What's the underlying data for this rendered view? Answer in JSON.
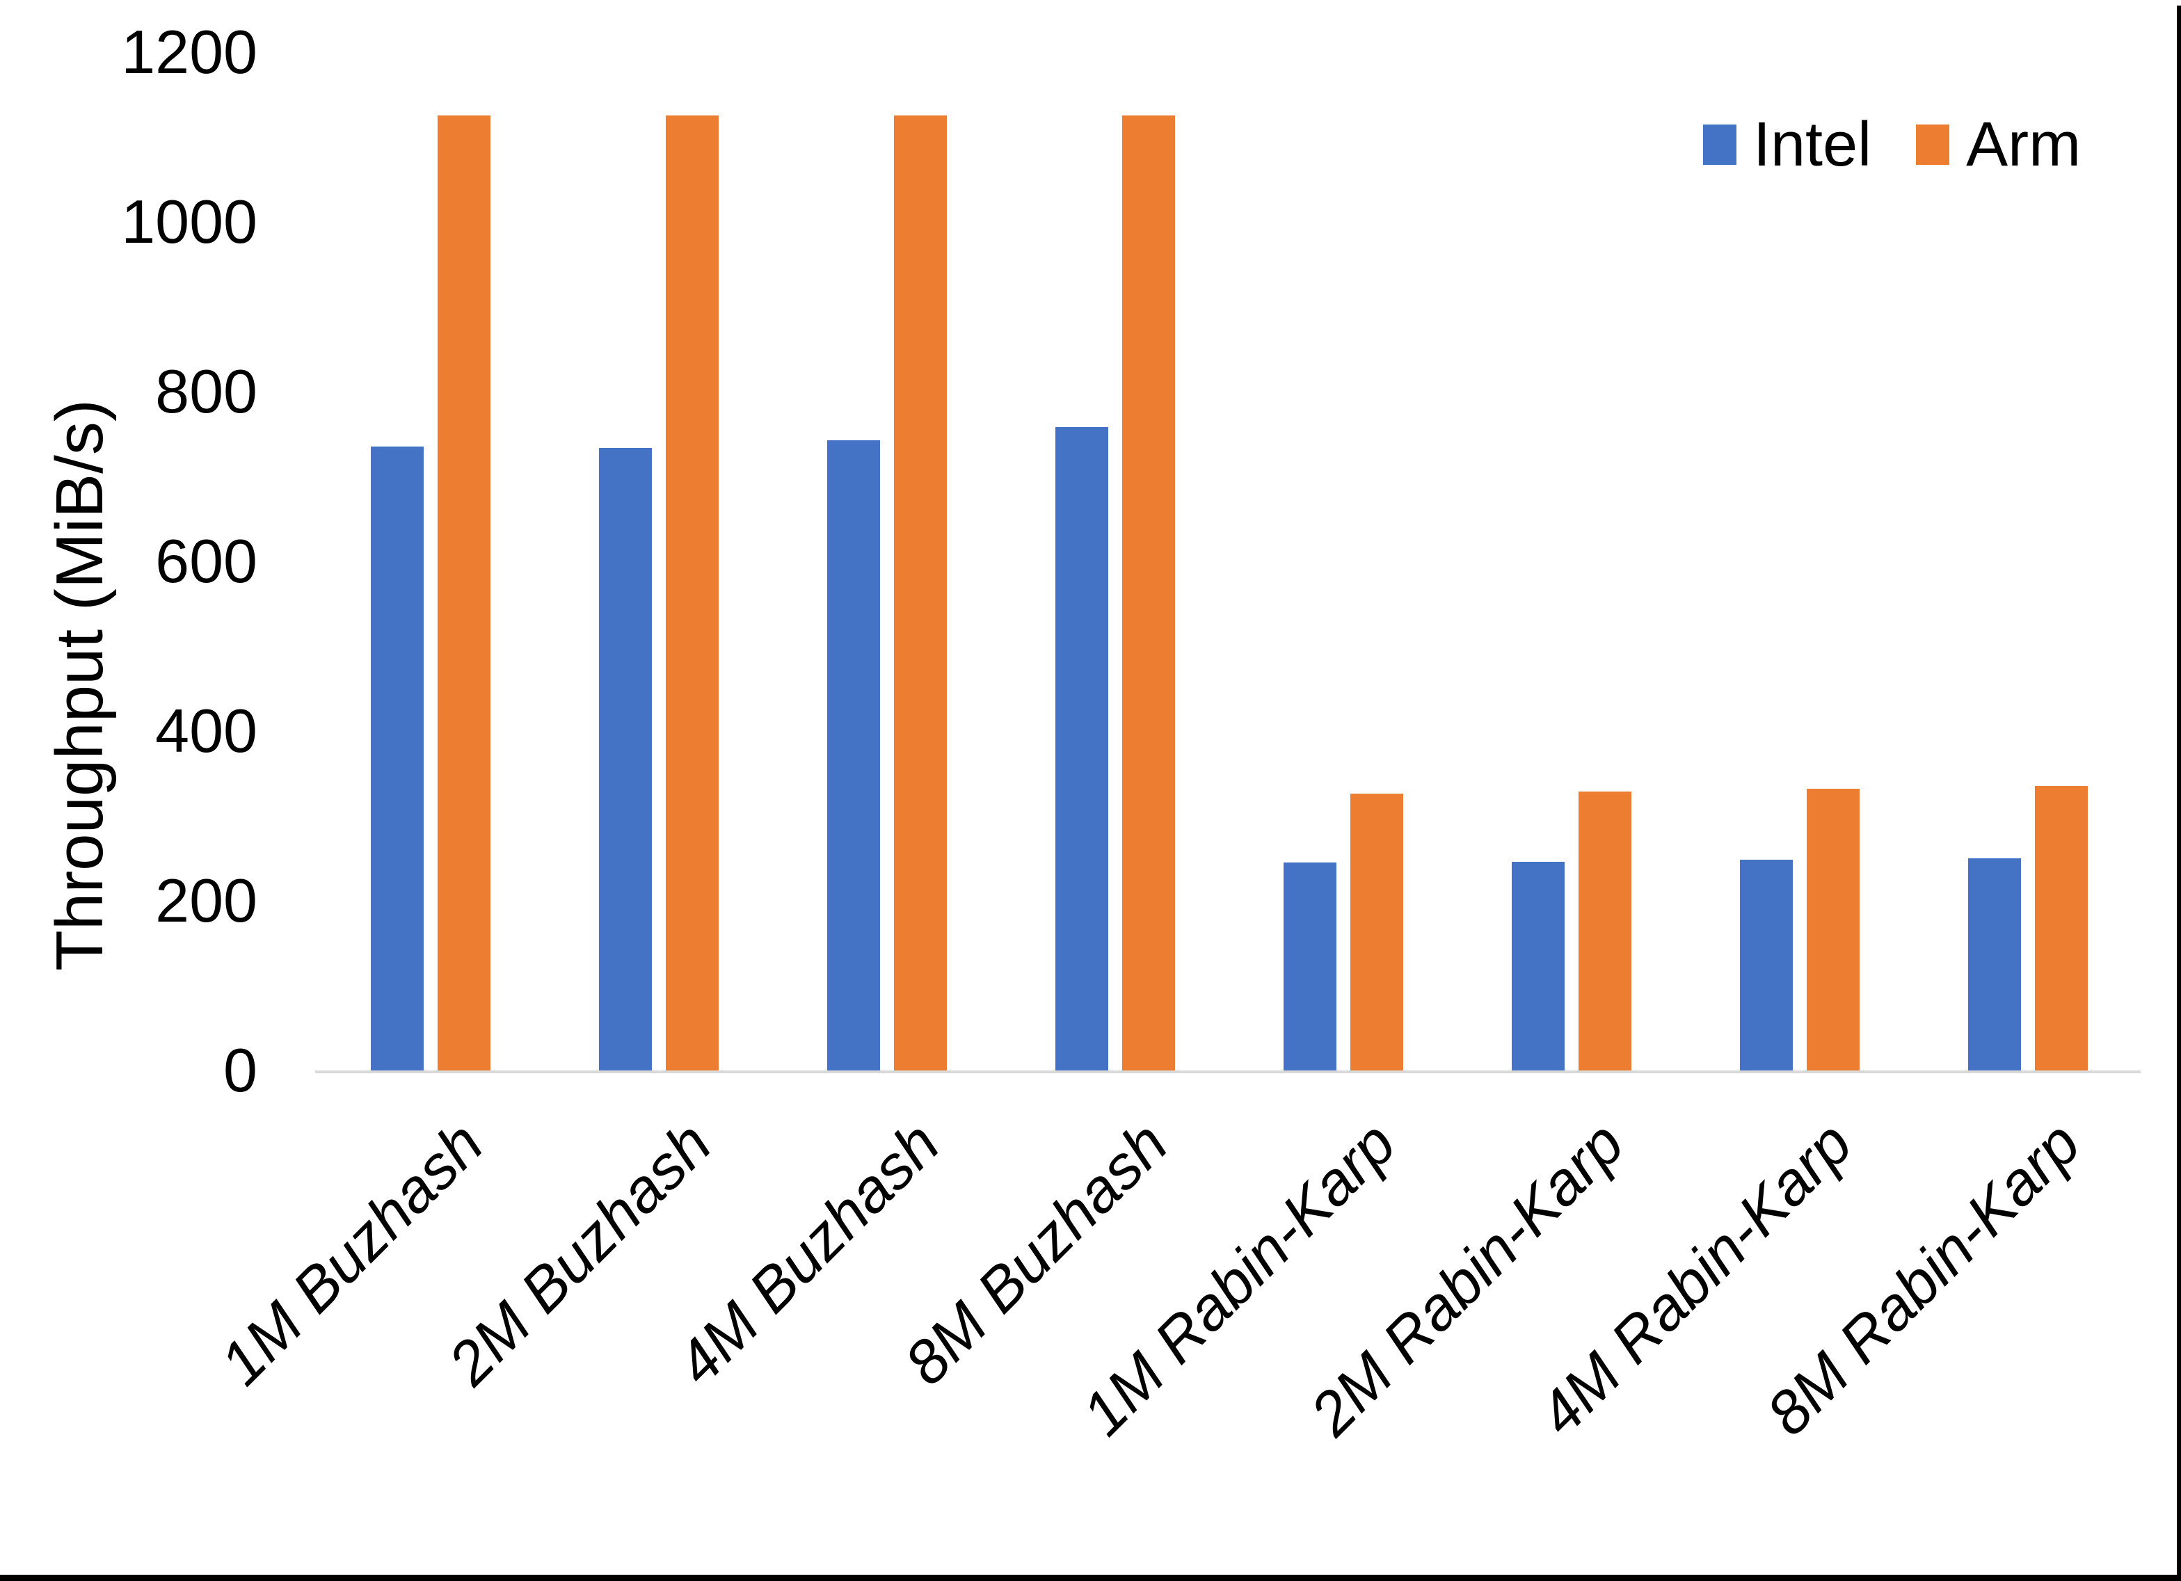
{
  "chart_data": {
    "type": "bar",
    "title": "",
    "xlabel": "",
    "ylabel": "Throughput (MiB/s)",
    "ylim": [
      0,
      1200
    ],
    "yticks": [
      0,
      200,
      400,
      600,
      800,
      1000,
      1200
    ],
    "grid": false,
    "legend_position": "top-right",
    "categories": [
      "1M Buzhash",
      "2M Buzhash",
      "4M Buzhash",
      "8M Buzhash",
      "1M Rabin-Karp",
      "2M Rabin-Karp",
      "4M Rabin-Karp",
      "8M Rabin-Karp"
    ],
    "series": [
      {
        "name": "Intel",
        "color": "#4472C4",
        "values": [
          735,
          734,
          743,
          758,
          245,
          246,
          248,
          250
        ]
      },
      {
        "name": "Arm",
        "color": "#ED7D31",
        "values": [
          1125,
          1125,
          1125,
          1125,
          326,
          329,
          332,
          335
        ]
      }
    ]
  },
  "colors": {
    "axis_line": "#D9D9D9",
    "text": "#000000",
    "background": "#FFFFFF",
    "edge_border": "#000000"
  }
}
